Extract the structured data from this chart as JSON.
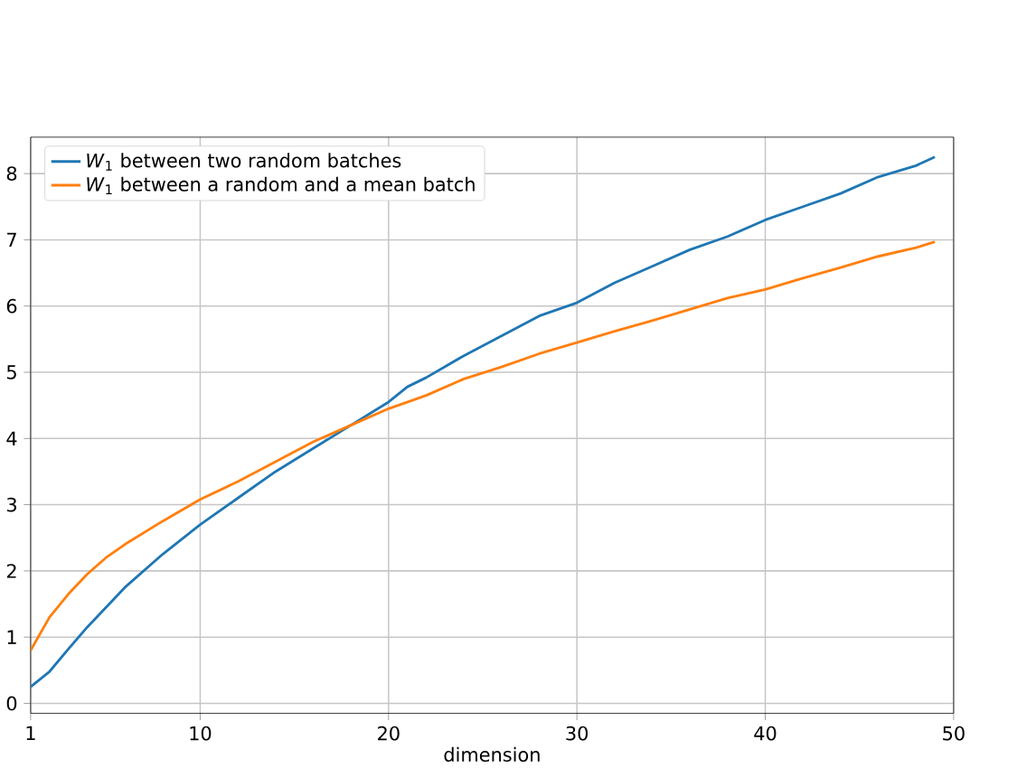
{
  "chart_data": {
    "type": "line",
    "xlabel": "dimension",
    "xlim": [
      1,
      50
    ],
    "ylim": [
      -0.15,
      8.55
    ],
    "xticks": [
      1,
      10,
      20,
      30,
      40,
      50
    ],
    "yticks": [
      0,
      1,
      2,
      3,
      4,
      5,
      6,
      7,
      8
    ],
    "grid": true,
    "legend": "top left",
    "x": [
      1,
      2,
      3,
      4,
      5,
      6,
      8,
      10,
      12,
      14,
      16,
      18,
      20,
      21,
      22,
      24,
      26,
      28,
      30,
      32,
      34,
      36,
      38,
      40,
      42,
      44,
      46,
      48,
      49
    ],
    "series": [
      {
        "name": "*W*$_{1}$ between two random batches",
        "color": "#1f77b4",
        "values": [
          0.25,
          0.48,
          0.82,
          1.15,
          1.45,
          1.75,
          2.25,
          2.7,
          3.1,
          3.5,
          3.85,
          4.2,
          4.55,
          4.78,
          4.92,
          5.25,
          5.55,
          5.85,
          6.05,
          6.35,
          6.6,
          6.85,
          7.05,
          7.3,
          7.5,
          7.7,
          7.95,
          8.12,
          8.25
        ]
      },
      {
        "name": "*W*$_{1}$ between a random and a mean batch",
        "color": "#ff7f0e",
        "values": [
          0.8,
          1.3,
          1.65,
          1.95,
          2.2,
          2.4,
          2.75,
          3.08,
          3.35,
          3.65,
          3.95,
          4.2,
          4.45,
          4.55,
          4.65,
          4.9,
          5.08,
          5.28,
          5.45,
          5.62,
          5.78,
          5.95,
          6.12,
          6.25,
          6.42,
          6.58,
          6.75,
          6.88,
          6.97
        ]
      }
    ]
  }
}
